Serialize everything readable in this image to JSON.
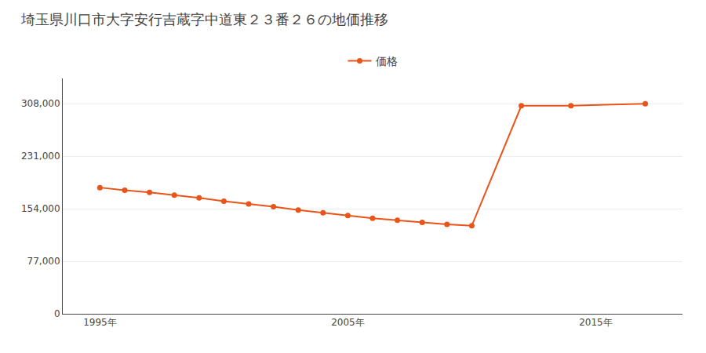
{
  "chart_data": {
    "type": "line",
    "title": "埼玉県川口市大字安行吉蔵字中道東２３番２６の地価推移",
    "x": [
      1995,
      1996,
      1997,
      1998,
      1999,
      2000,
      2001,
      2002,
      2003,
      2004,
      2005,
      2006,
      2007,
      2008,
      2009,
      2010,
      2012,
      2014,
      2017
    ],
    "series": [
      {
        "name": "価格",
        "color": "#E8541A",
        "marker": "circle",
        "values": [
          185000,
          181000,
          178000,
          174000,
          170000,
          165000,
          161000,
          157000,
          152000,
          148000,
          144000,
          140000,
          137000,
          134000,
          131000,
          129000,
          305000,
          305000,
          308000
        ]
      }
    ],
    "xlim": [
      1993.5,
      2018.5
    ],
    "xticks": [
      {
        "value": 1995,
        "label": "1995年"
      },
      {
        "value": 2005,
        "label": "2005年"
      },
      {
        "value": 2015,
        "label": "2015年"
      }
    ],
    "ylim": [
      0,
      345000
    ],
    "yticks": [
      0,
      {
        "value": 77000,
        "label": "77,000"
      },
      {
        "value": 154000,
        "label": "154,000"
      },
      {
        "value": 231000,
        "label": "231,000"
      },
      {
        "value": 308000,
        "label": "308,000"
      }
    ],
    "grid": "y",
    "legend": "top"
  }
}
